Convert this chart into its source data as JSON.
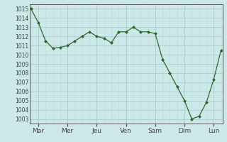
{
  "y_values": [
    1015,
    1013.5,
    1011.5,
    1010.7,
    1010.8,
    1011.0,
    1011.5,
    1012.0,
    1012.5,
    1012.0,
    1011.8,
    1011.3,
    1012.5,
    1012.5,
    1013.0,
    1012.5,
    1012.5,
    1012.3,
    1009.5,
    1008.0,
    1006.5,
    1005.0,
    1003.0,
    1003.3,
    1004.8,
    1007.3,
    1010.5
  ],
  "day_labels": [
    "Mar",
    "Mer",
    "Jeu",
    "Ven",
    "Sam",
    "Dim",
    "Lun"
  ],
  "day_positions": [
    1,
    5,
    9,
    13,
    17,
    21,
    25
  ],
  "ylim_min": 1003,
  "ylim_max": 1015,
  "yticks": [
    1003,
    1004,
    1005,
    1006,
    1007,
    1008,
    1009,
    1010,
    1011,
    1012,
    1013,
    1014,
    1015
  ],
  "line_color": "#2d6a2d",
  "marker_color": "#2d6a2d",
  "bg_color": "#cce8e8",
  "grid_major_color": "#aacccc",
  "grid_minor_color": "#bbdddd",
  "axis_color": "#444444",
  "tick_label_fontsize": 5.5,
  "day_label_fontsize": 6.5,
  "xlim_min": -0.2,
  "xlim_max": 26.2
}
